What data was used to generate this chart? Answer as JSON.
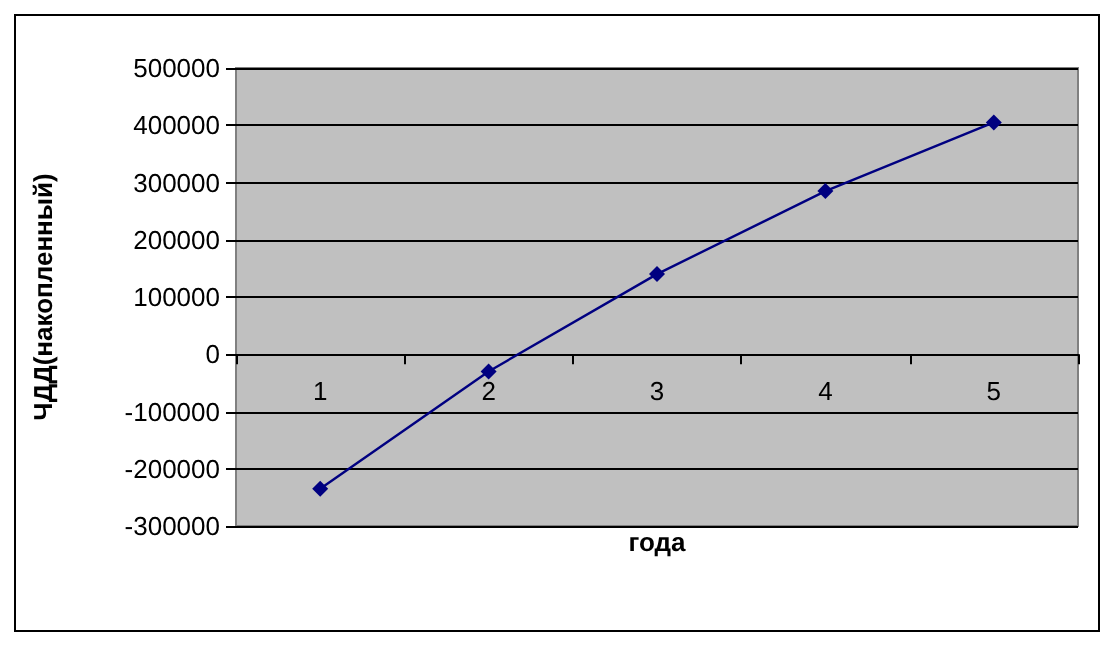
{
  "chart_data": {
    "type": "line",
    "xlabel": "года",
    "ylabel": "ЧДД(накопленный)",
    "categories": [
      "1",
      "2",
      "3",
      "4",
      "5"
    ],
    "series": [
      {
        "color": "#000080",
        "values": [
          -235000,
          -30000,
          140000,
          285000,
          405000
        ]
      }
    ],
    "ylim": [
      -300000,
      500000
    ],
    "yticks": [
      -300000,
      -200000,
      -100000,
      0,
      100000,
      200000,
      300000,
      400000,
      500000
    ],
    "grid": "y",
    "marker": "diamond",
    "line_style": "solid"
  }
}
